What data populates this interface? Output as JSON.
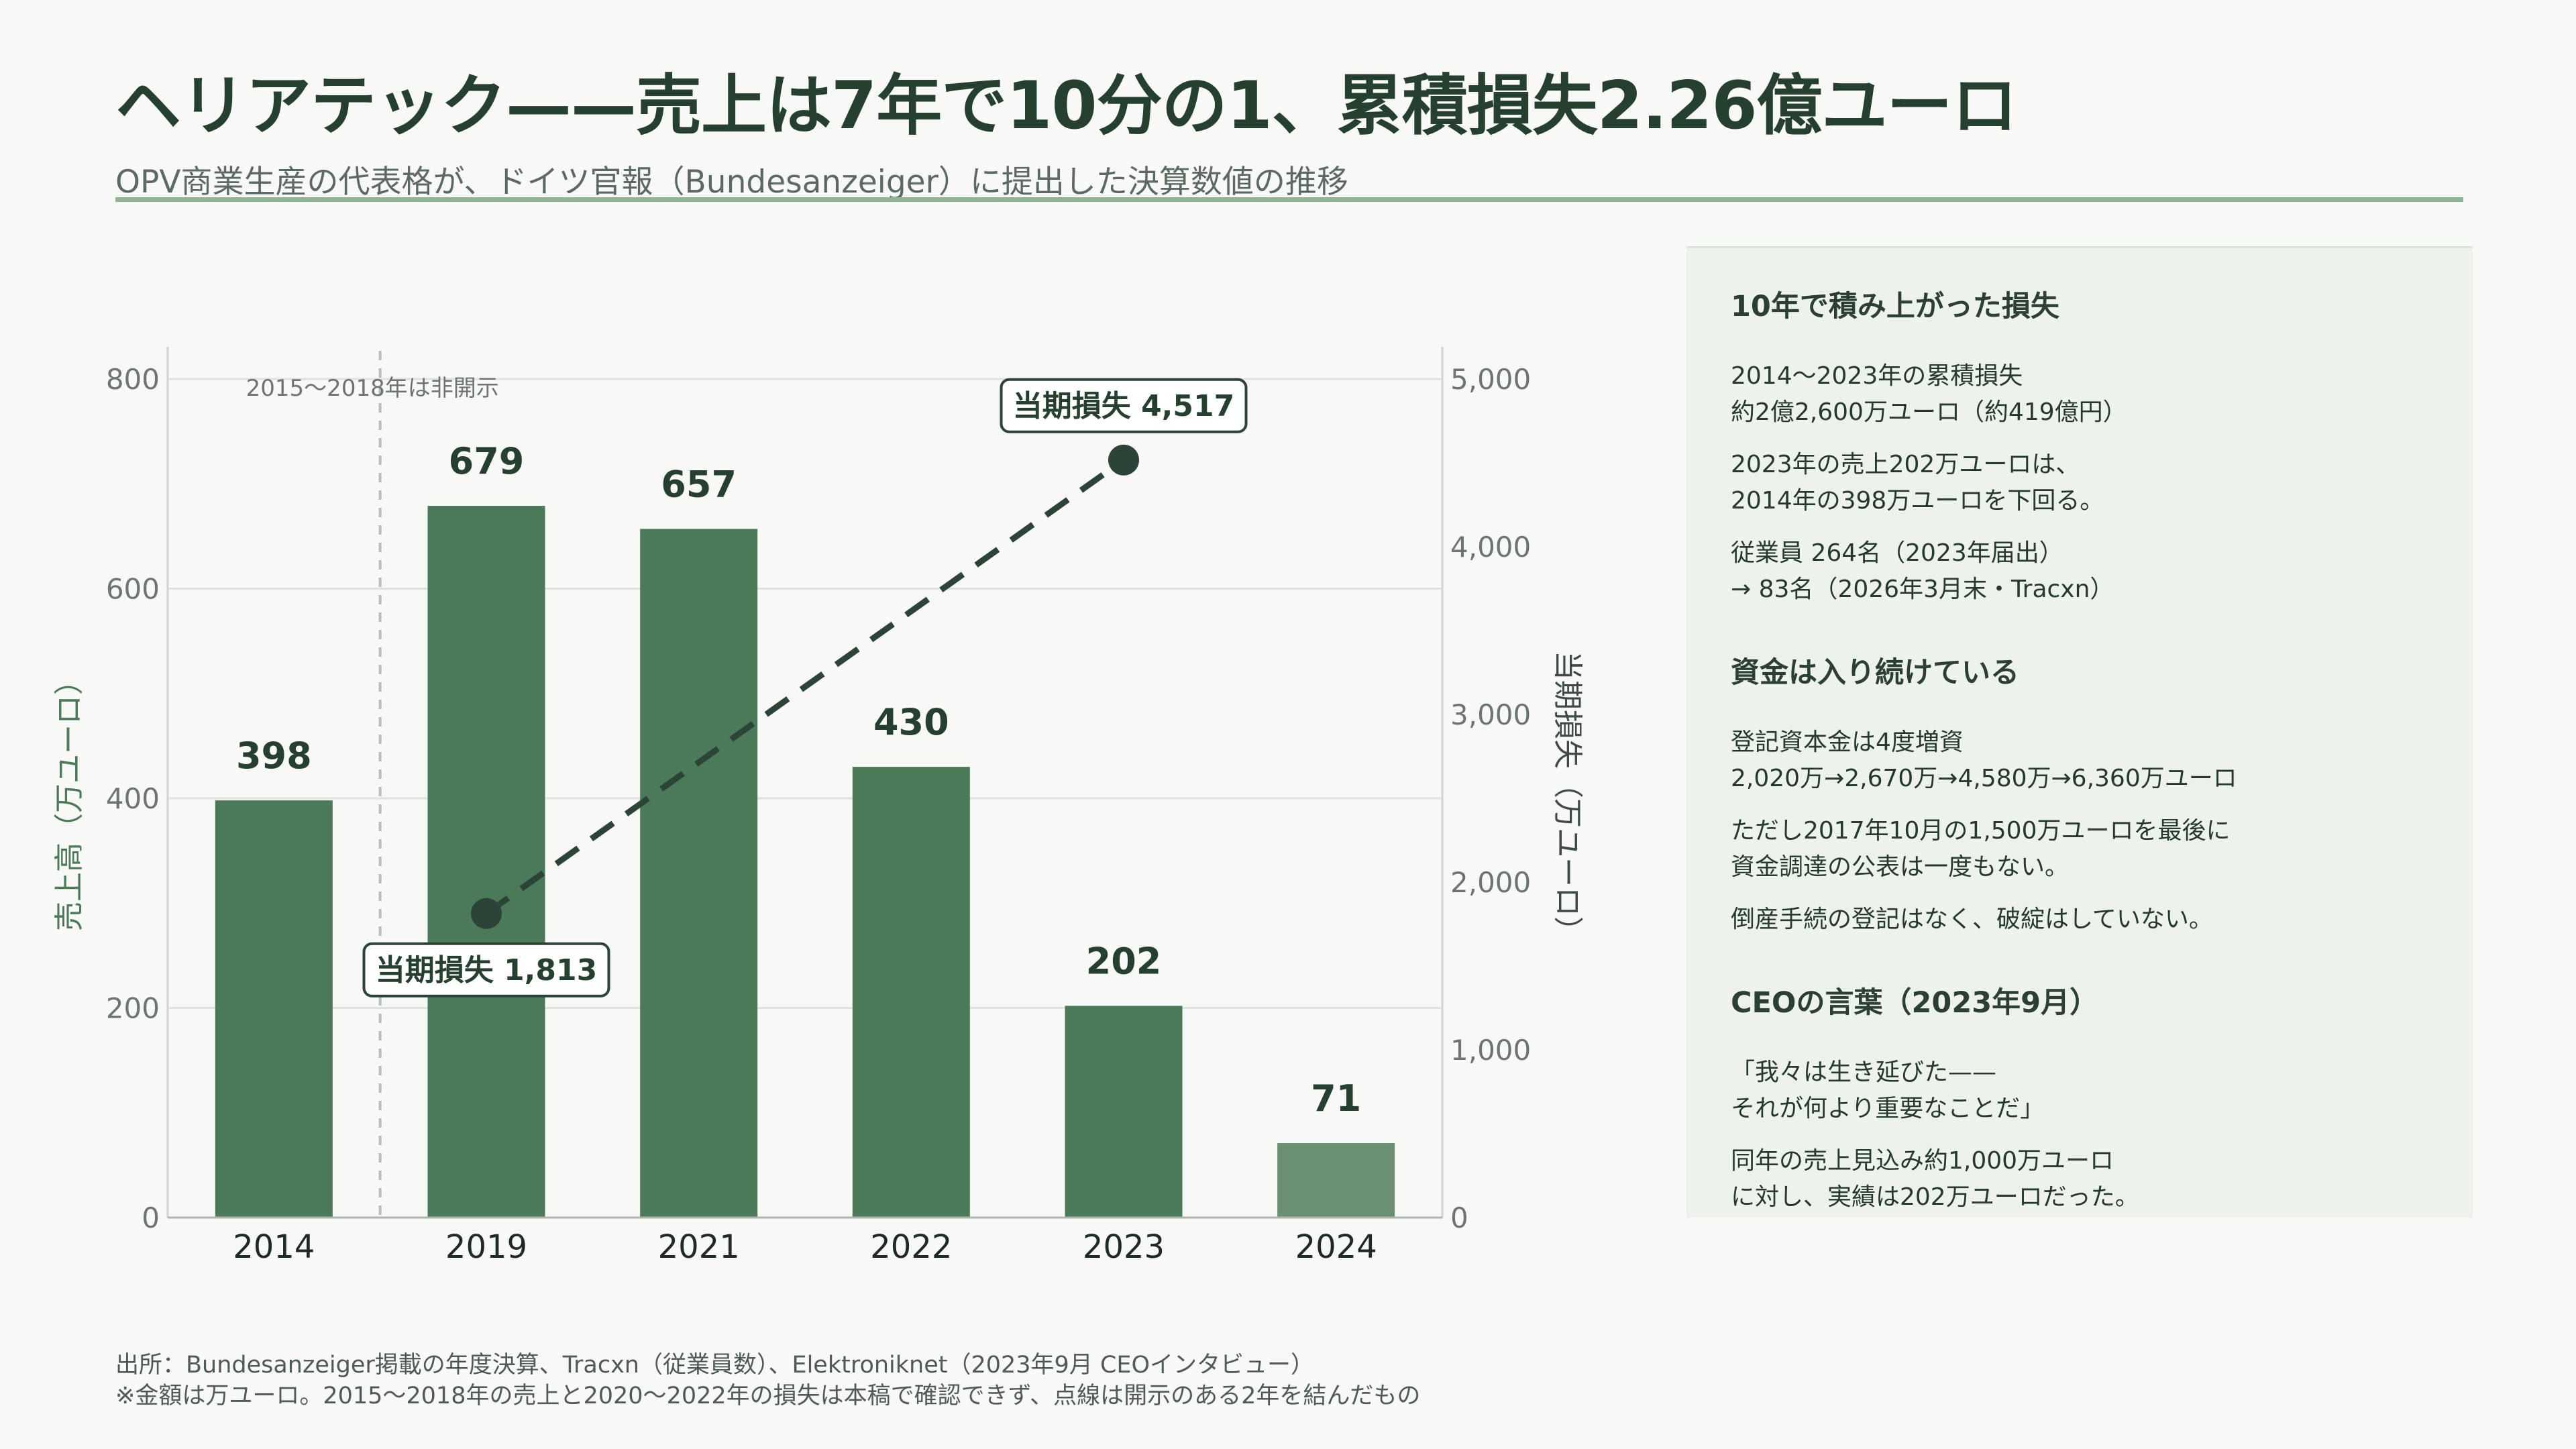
{
  "header": {
    "title": "ヘリアテック——売上は7年で10分の1、累積損失2.26億ユーロ",
    "subtitle": "OPV商業生産の代表格が、ドイツ官報（Bundesanzeiger）に提出した決算数値の推移"
  },
  "colors": {
    "bar": "#4a7a57",
    "bar_light": "#6a8f71",
    "loss_line": "#2b4437",
    "accent_rule": "#8fb592",
    "panel_bg": "#edf3ec"
  },
  "chart_data": {
    "type": "bar",
    "categories": [
      "2014",
      "2019",
      "2021",
      "2022",
      "2023",
      "2024"
    ],
    "series": [
      {
        "values": [
          398,
          679,
          657,
          430,
          202,
          71
        ],
        "data_labels": [
          "398",
          "679",
          "657",
          "430",
          "202",
          "71"
        ],
        "axis": "left"
      },
      {
        "type": "line",
        "style": "dashed",
        "axis": "right",
        "points": [
          {
            "x": "2019",
            "y": 1813,
            "label": "当期損失 1,813"
          },
          {
            "x": "2023",
            "y": 4517,
            "label": "当期損失 4,517"
          }
        ]
      }
    ],
    "ylabel": "売上高（万ユーロ）",
    "y2label": "当期損失（万ユーロ）",
    "ylim": [
      0,
      800
    ],
    "y2lim": [
      0,
      5000
    ],
    "yticks": [
      "0",
      "200",
      "400",
      "600",
      "800"
    ],
    "y2ticks": [
      "0",
      "1,000",
      "2,000",
      "3,000",
      "4,000",
      "5,000"
    ],
    "y2tick_values": [
      0,
      1000,
      2000,
      3000,
      4000,
      5000
    ],
    "annotation": "2015〜2018年は非開示",
    "grid": true
  },
  "side_panel": {
    "sections": [
      {
        "heading": "10年で積み上がった損失",
        "paragraphs": [
          "2014〜2023年の累積損失\n約2億2,600万ユーロ（約419億円）",
          "2023年の売上202万ユーロは、\n2014年の398万ユーロを下回る。",
          "従業員 264名（2023年届出）\n→ 83名（2026年3月末・Tracxn）"
        ]
      },
      {
        "heading": "資金は入り続けている",
        "paragraphs": [
          "登記資本金は4度増資\n2,020万→2,670万→4,580万→6,360万ユーロ",
          "ただし2017年10月の1,500万ユーロを最後に\n資金調達の公表は一度もない。",
          "倒産手続の登記はなく、破綻はしていない。"
        ]
      },
      {
        "heading": "CEOの言葉（2023年9月）",
        "paragraphs": [
          "「我々は生き延びた——\nそれが何より重要なことだ」",
          "同年の売上見込み約1,000万ユーロ\nに対し、実績は202万ユーロだった。"
        ]
      }
    ]
  },
  "footer": {
    "source": "出所：Bundesanzeiger掲載の年度決算、Tracxn（従業員数）、Elektroniknet（2023年9月 CEOインタビュー）",
    "note": "※金額は万ユーロ。2015〜2018年の売上と2020〜2022年の損失は本稿で確認できず、点線は開示のある2年を結んだもの"
  }
}
